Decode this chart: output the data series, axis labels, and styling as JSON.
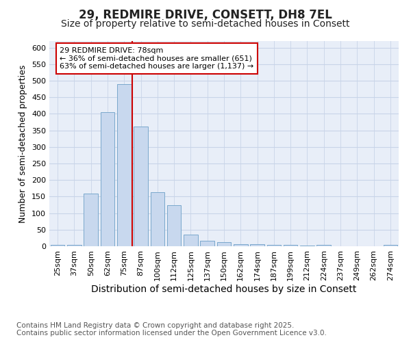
{
  "title": "29, REDMIRE DRIVE, CONSETT, DH8 7EL",
  "subtitle": "Size of property relative to semi-detached houses in Consett",
  "xlabel": "Distribution of semi-detached houses by size in Consett",
  "ylabel": "Number of semi-detached properties",
  "bins": [
    "25sqm",
    "37sqm",
    "50sqm",
    "62sqm",
    "75sqm",
    "87sqm",
    "100sqm",
    "112sqm",
    "125sqm",
    "137sqm",
    "150sqm",
    "162sqm",
    "174sqm",
    "187sqm",
    "199sqm",
    "212sqm",
    "224sqm",
    "237sqm",
    "249sqm",
    "262sqm",
    "274sqm"
  ],
  "values": [
    5,
    5,
    160,
    405,
    490,
    362,
    163,
    123,
    36,
    17,
    12,
    7,
    6,
    4,
    4,
    2,
    5,
    0,
    0,
    0,
    4
  ],
  "bar_color": "#c8d8ee",
  "bar_edge_color": "#7aa8cc",
  "bar_linewidth": 0.7,
  "vline_color": "#cc0000",
  "annotation_text": "29 REDMIRE DRIVE: 78sqm\n← 36% of semi-detached houses are smaller (651)\n63% of semi-detached houses are larger (1,137) →",
  "annotation_box_color": "#ffffff",
  "annotation_box_edge": "#cc0000",
  "ylim": [
    0,
    620
  ],
  "yticks": [
    0,
    50,
    100,
    150,
    200,
    250,
    300,
    350,
    400,
    450,
    500,
    550,
    600
  ],
  "grid_color": "#c8d4e8",
  "background_color": "#e8eef8",
  "footnote": "Contains HM Land Registry data © Crown copyright and database right 2025.\nContains public sector information licensed under the Open Government Licence v3.0.",
  "title_fontsize": 12,
  "subtitle_fontsize": 10,
  "xlabel_fontsize": 10,
  "ylabel_fontsize": 9,
  "tick_fontsize": 8,
  "annotation_fontsize": 8,
  "footnote_fontsize": 7.5
}
